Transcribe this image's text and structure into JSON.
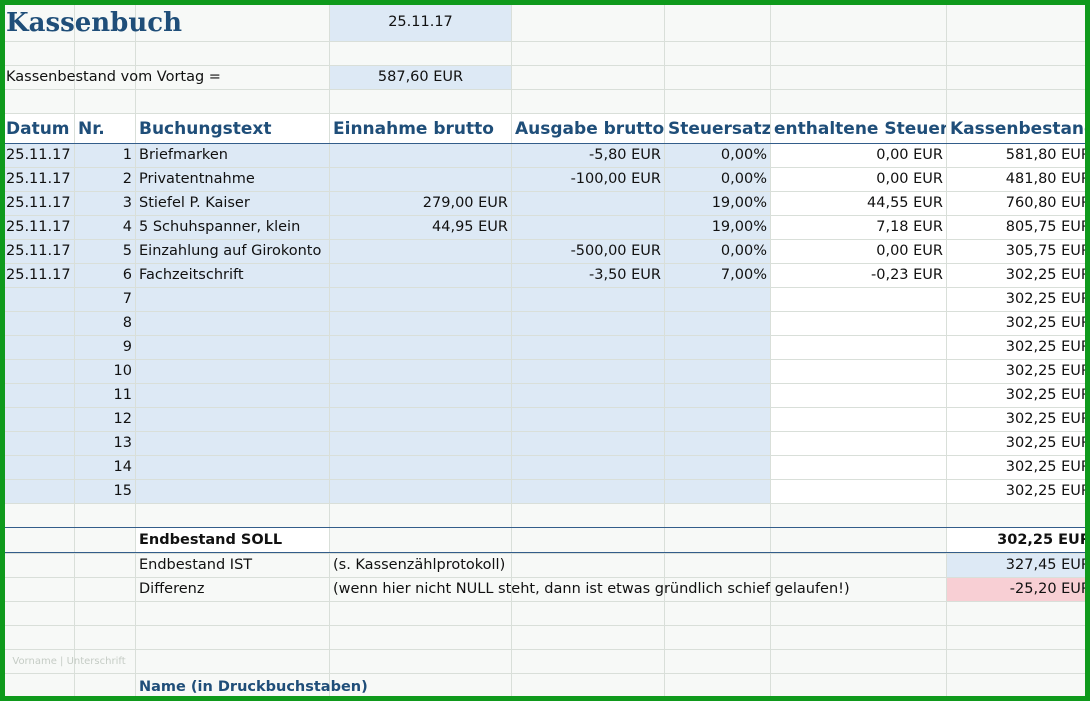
{
  "title": "Kassenbuch",
  "date": "25.11.17",
  "opening_label": "Kassenbestand vom Vortag =",
  "opening_value": "587,60 EUR",
  "headers": [
    "Datum",
    "Nr.",
    "Buchungstext",
    "Einnahme brutto",
    "Ausgabe brutto",
    "Steuersatz",
    "enthaltene Steuer",
    "Kassenbestand"
  ],
  "rows": [
    {
      "date": "25.11.17",
      "nr": "1",
      "text": "Briefmarken",
      "in": "",
      "out": "-5,80 EUR",
      "rate": "0,00%",
      "tax": "0,00 EUR",
      "bal": "581,80 EUR"
    },
    {
      "date": "25.11.17",
      "nr": "2",
      "text": "Privatentnahme",
      "in": "",
      "out": "-100,00 EUR",
      "rate": "0,00%",
      "tax": "0,00 EUR",
      "bal": "481,80 EUR"
    },
    {
      "date": "25.11.17",
      "nr": "3",
      "text": "Stiefel P. Kaiser",
      "in": "279,00 EUR",
      "out": "",
      "rate": "19,00%",
      "tax": "44,55 EUR",
      "bal": "760,80 EUR"
    },
    {
      "date": "25.11.17",
      "nr": "4",
      "text": "5 Schuhspanner, klein",
      "in": "44,95 EUR",
      "out": "",
      "rate": "19,00%",
      "tax": "7,18 EUR",
      "bal": "805,75 EUR"
    },
    {
      "date": "25.11.17",
      "nr": "5",
      "text": "Einzahlung auf Girokonto",
      "in": "",
      "out": "-500,00 EUR",
      "rate": "0,00%",
      "tax": "0,00 EUR",
      "bal": "305,75 EUR"
    },
    {
      "date": "25.11.17",
      "nr": "6",
      "text": "Fachzeitschrift",
      "in": "",
      "out": "-3,50 EUR",
      "rate": "7,00%",
      "tax": "-0,23 EUR",
      "bal": "302,25 EUR"
    },
    {
      "date": "",
      "nr": "7",
      "text": "",
      "in": "",
      "out": "",
      "rate": "",
      "tax": "",
      "bal": "302,25 EUR"
    },
    {
      "date": "",
      "nr": "8",
      "text": "",
      "in": "",
      "out": "",
      "rate": "",
      "tax": "",
      "bal": "302,25 EUR"
    },
    {
      "date": "",
      "nr": "9",
      "text": "",
      "in": "",
      "out": "",
      "rate": "",
      "tax": "",
      "bal": "302,25 EUR"
    },
    {
      "date": "",
      "nr": "10",
      "text": "",
      "in": "",
      "out": "",
      "rate": "",
      "tax": "",
      "bal": "302,25 EUR"
    },
    {
      "date": "",
      "nr": "11",
      "text": "",
      "in": "",
      "out": "",
      "rate": "",
      "tax": "",
      "bal": "302,25 EUR"
    },
    {
      "date": "",
      "nr": "12",
      "text": "",
      "in": "",
      "out": "",
      "rate": "",
      "tax": "",
      "bal": "302,25 EUR"
    },
    {
      "date": "",
      "nr": "13",
      "text": "",
      "in": "",
      "out": "",
      "rate": "",
      "tax": "",
      "bal": "302,25 EUR"
    },
    {
      "date": "",
      "nr": "14",
      "text": "",
      "in": "",
      "out": "",
      "rate": "",
      "tax": "",
      "bal": "302,25 EUR"
    },
    {
      "date": "",
      "nr": "15",
      "text": "",
      "in": "",
      "out": "",
      "rate": "",
      "tax": "",
      "bal": "302,25 EUR"
    }
  ],
  "summary": {
    "soll_label": "Endbestand SOLL",
    "soll_value": "302,25 EUR",
    "ist_label": "Endbestand IST",
    "ist_note": "(s. Kassenzählprotokoll)",
    "ist_value": "327,45 EUR",
    "diff_label": "Differenz",
    "diff_note": "(wenn hier nicht NULL steht, dann ist etwas gründlich schief gelaufen!)",
    "diff_value": "-25,20 EUR"
  },
  "footer_small": "Vorname | Unterschrift",
  "footer_name": "Name (in Druckbuchstaben)",
  "colors": {
    "frame": "#0f9a1c",
    "header_text": "#1f4e79",
    "input_fill": "#dde9f5",
    "diff_fill": "#f8cfd4"
  }
}
